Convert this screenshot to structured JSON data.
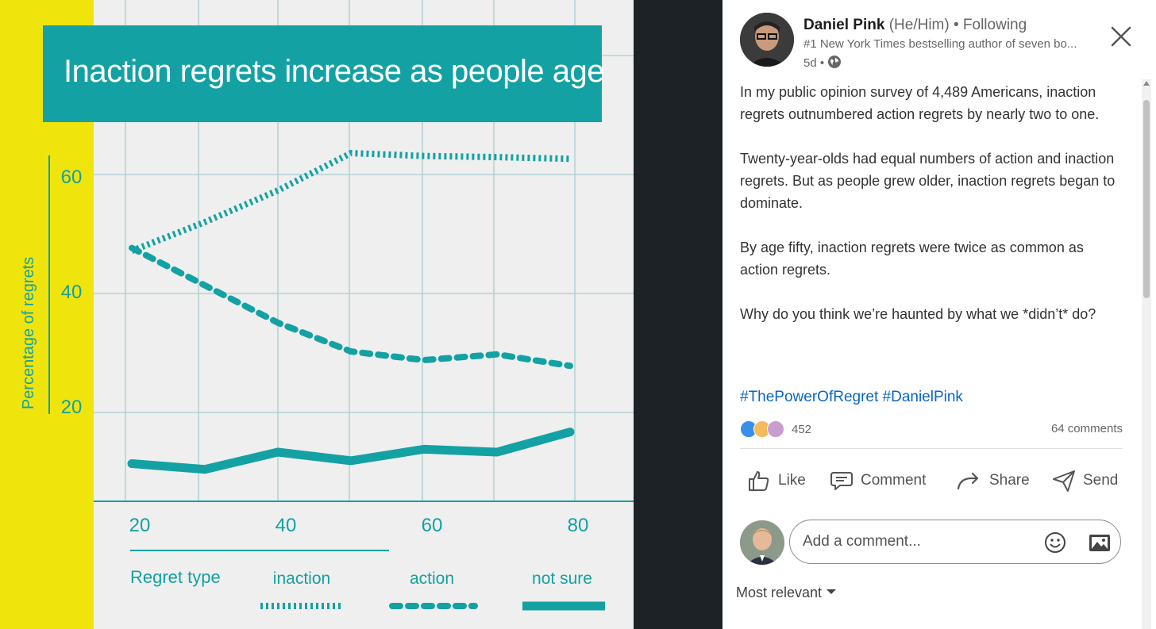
{
  "chart_data": {
    "type": "line",
    "title": "Inaction regrets increase as people age",
    "ylabel": "Percentage of regrets",
    "xlabel": "",
    "x": [
      20,
      30,
      40,
      50,
      60,
      70,
      80
    ],
    "xticks": [
      "20",
      "40",
      "60",
      "80"
    ],
    "yticks": [
      "20",
      "40",
      "60"
    ],
    "xlim": [
      20,
      80
    ],
    "ylim": [
      5,
      72
    ],
    "grid": true,
    "legend_title": "Regret type",
    "series": [
      {
        "name": "inaction",
        "style": "dotted",
        "color": "#14a1a3",
        "values": [
          47,
          52,
          57.5,
          64,
          63.5,
          63.3,
          63
        ]
      },
      {
        "name": "action",
        "style": "dashed",
        "color": "#14a1a3",
        "values": [
          47.5,
          41,
          34.5,
          29.5,
          28,
          29,
          27
        ]
      },
      {
        "name": "not sure",
        "style": "solid",
        "color": "#14a1a3",
        "values": [
          10,
          9,
          12,
          10.5,
          12.5,
          12,
          15.5
        ]
      }
    ]
  },
  "post": {
    "author_name": "Daniel Pink",
    "author_pronouns": "(He/Him)",
    "follow_status": "• Following",
    "author_headline": "#1 New York Times bestselling author of seven bo...",
    "post_time": "5d •",
    "body": [
      "In my public opinion survey of 4,489 Americans, inaction regrets outnumbered action regrets by nearly two to one.",
      "Twenty-year-olds had equal numbers of action and inaction regrets. But as people grew older, inaction regrets began to dominate.",
      "By age fifty, inaction regrets were twice as common as action regrets.",
      "Why do you think we’re haunted by what we *didn’t* do?"
    ],
    "hashtags": "#ThePowerOfRegret #DanielPink",
    "reaction_count": "452",
    "comment_count": "64 comments"
  },
  "actions": {
    "like": "Like",
    "comment": "Comment",
    "share": "Share",
    "send": "Send"
  },
  "comment_box": {
    "placeholder": "Add a comment..."
  },
  "sort": {
    "label": "Most relevant"
  },
  "icons": [
    "close-icon",
    "globe-icon",
    "like-icon",
    "comment-icon",
    "share-icon",
    "send-icon",
    "emoji-icon",
    "photo-icon",
    "chevron-down-icon"
  ],
  "colors": {
    "teal": "#14a1a3",
    "yellow": "#f0e40d",
    "link": "#0a66c2"
  }
}
